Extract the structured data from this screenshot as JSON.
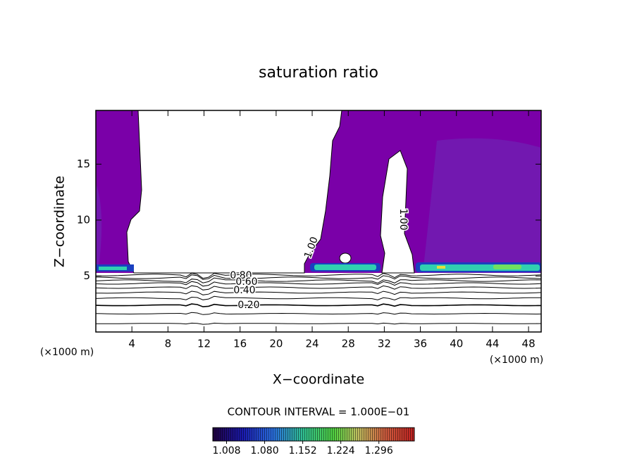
{
  "chart_data": {
    "type": "contour",
    "title": "saturation ratio",
    "xlabel": "X−coordinate",
    "ylabel": "Z−coordinate",
    "x_unit_label": "(×1000 m)",
    "y_unit_label": "(×1000 m)",
    "xlim": [
      0,
      49.4
    ],
    "ylim": [
      0,
      19.8
    ],
    "xticks": [
      4,
      8,
      12,
      16,
      20,
      24,
      28,
      32,
      36,
      40,
      44,
      48
    ],
    "yticks": [
      5,
      10,
      15
    ],
    "fill_color": "#7a00a8",
    "contour_labels": [
      {
        "value": 0.8,
        "label": "0.80"
      },
      {
        "value": 0.6,
        "label": "0.60"
      },
      {
        "value": 0.4,
        "label": "0.40"
      },
      {
        "value": 0.2,
        "label": "0.20"
      },
      {
        "value": 1.0,
        "label": "1.00"
      },
      {
        "value": 1.0,
        "label": "1.00"
      }
    ],
    "contour_interval_label": "CONTOUR INTERVAL = 1.000E−01",
    "colorbar_lim": [
      0.982,
      1.363
    ],
    "colorbar_ticks": [
      1.008,
      1.08,
      1.152,
      1.224,
      1.296
    ],
    "colorbar_tick_labels": [
      "1.008",
      "1.080",
      "1.152",
      "1.224",
      "1.296"
    ]
  }
}
